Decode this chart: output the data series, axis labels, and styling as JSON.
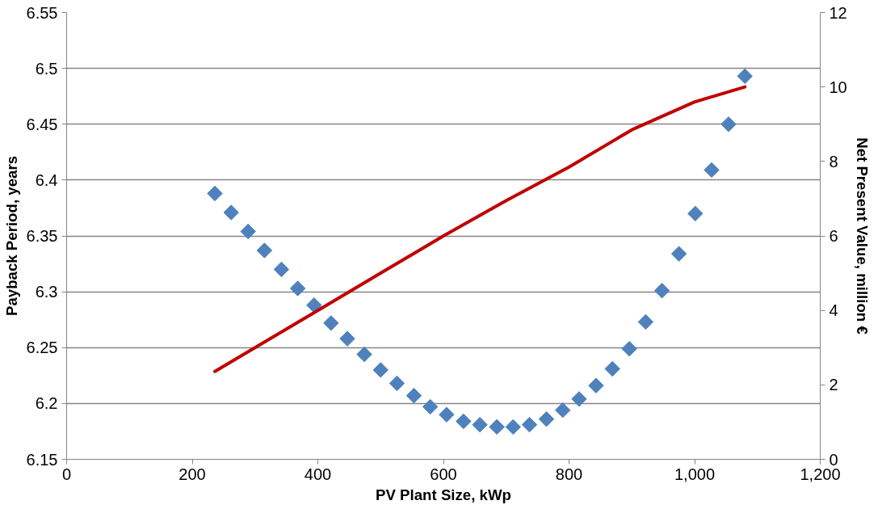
{
  "chart_data": {
    "type": "scatter",
    "xlabel": "PV Plant Size, kWp",
    "ylabel": "Payback Period, years",
    "y2label": "Net Present Value, million €",
    "xlim": [
      0,
      1200
    ],
    "xticks": [
      0,
      {
        "value": 200,
        "label": "200"
      },
      {
        "value": 400,
        "label": "400"
      },
      {
        "value": 600,
        "label": "600"
      },
      {
        "value": 800,
        "label": "800"
      },
      {
        "value": 1000,
        "label": "1,000"
      },
      {
        "value": 1200,
        "label": "1,200"
      }
    ],
    "ylim": [
      6.15,
      6.55
    ],
    "yticks": [
      6.15,
      6.2,
      6.25,
      6.3,
      6.35,
      6.4,
      6.45,
      6.5,
      6.55
    ],
    "y2lim": [
      0,
      12
    ],
    "y2ticks": [
      0,
      2,
      4,
      6,
      8,
      10,
      12
    ],
    "grid": "y",
    "series": [
      {
        "marker": "diamond",
        "color": "#4f81bd",
        "x": [
          236,
          262,
          289,
          315,
          342,
          368,
          394,
          421,
          447,
          474,
          500,
          526,
          553,
          579,
          605,
          632,
          658,
          685,
          711,
          737,
          764,
          790,
          816,
          843,
          869,
          896,
          922,
          948,
          975,
          1001,
          1027,
          1054,
          1080
        ],
        "values": [
          6.388,
          6.371,
          6.354,
          6.337,
          6.32,
          6.303,
          6.288,
          6.272,
          6.258,
          6.244,
          6.23,
          6.218,
          6.207,
          6.197,
          6.19,
          6.184,
          6.181,
          6.179,
          6.179,
          6.181,
          6.186,
          6.194,
          6.204,
          6.216,
          6.231,
          6.249,
          6.273,
          6.301,
          6.334,
          6.37,
          6.409,
          6.45,
          6.493
        ]
      },
      {
        "type": "line",
        "axis": "y2",
        "color": "#c00000",
        "line_style": "solid",
        "x": [
          236,
          300,
          400,
          500,
          600,
          700,
          800,
          900,
          1000,
          1080
        ],
        "values": [
          2.36,
          3.0,
          4.0,
          5.0,
          6.0,
          6.95,
          7.85,
          8.85,
          9.6,
          10.0
        ]
      }
    ]
  }
}
